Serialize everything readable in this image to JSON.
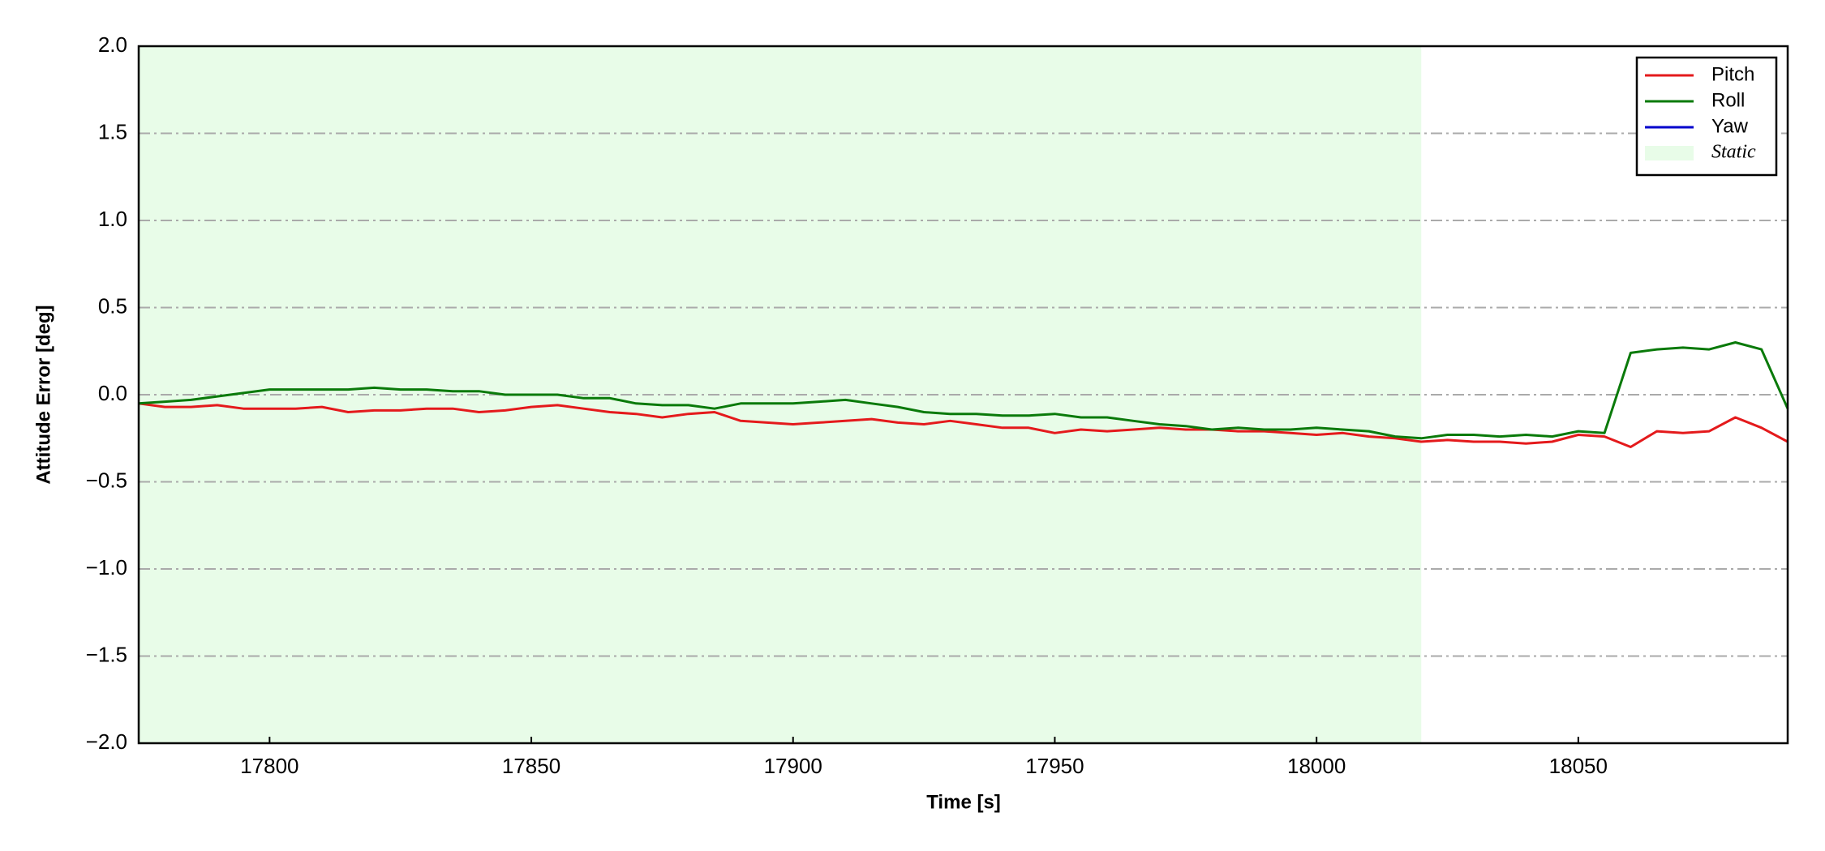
{
  "chart_data": {
    "type": "line",
    "xlabel": "Time [s]",
    "ylabel": "Attitude Error [deg]",
    "x": [
      17775,
      17780,
      17785,
      17790,
      17795,
      17800,
      17805,
      17810,
      17815,
      17820,
      17825,
      17830,
      17835,
      17840,
      17845,
      17850,
      17855,
      17860,
      17865,
      17870,
      17875,
      17880,
      17885,
      17890,
      17895,
      17900,
      17905,
      17910,
      17915,
      17920,
      17925,
      17930,
      17935,
      17940,
      17945,
      17950,
      17955,
      17960,
      17965,
      17970,
      17975,
      17980,
      17985,
      17990,
      17995,
      18000,
      18005,
      18010,
      18015,
      18020,
      18025,
      18030,
      18035,
      18040,
      18045,
      18050,
      18055,
      18060,
      18065,
      18070,
      18075,
      18080,
      18085,
      18090
    ],
    "series": [
      {
        "name": "Pitch",
        "color": "#e41a1c",
        "values": [
          -0.05,
          -0.07,
          -0.07,
          -0.06,
          -0.08,
          -0.08,
          -0.08,
          -0.07,
          -0.1,
          -0.09,
          -0.09,
          -0.08,
          -0.08,
          -0.1,
          -0.09,
          -0.07,
          -0.06,
          -0.08,
          -0.1,
          -0.11,
          -0.13,
          -0.11,
          -0.1,
          -0.15,
          -0.16,
          -0.17,
          -0.16,
          -0.15,
          -0.14,
          -0.16,
          -0.17,
          -0.15,
          -0.17,
          -0.19,
          -0.19,
          -0.22,
          -0.2,
          -0.21,
          -0.2,
          -0.19,
          -0.2,
          -0.2,
          -0.21,
          -0.21,
          -0.22,
          -0.23,
          -0.22,
          -0.24,
          -0.25,
          -0.27,
          -0.26,
          -0.27,
          -0.27,
          -0.28,
          -0.27,
          -0.23,
          -0.24,
          -0.3,
          -0.21,
          -0.22,
          -0.21,
          -0.13,
          -0.19,
          -0.27
        ]
      },
      {
        "name": "Roll",
        "color": "#0a7a0a",
        "values": [
          -0.05,
          -0.04,
          -0.03,
          -0.01,
          0.01,
          0.03,
          0.03,
          0.03,
          0.03,
          0.04,
          0.03,
          0.03,
          0.02,
          0.02,
          0.0,
          0.0,
          0.0,
          -0.02,
          -0.02,
          -0.05,
          -0.06,
          -0.06,
          -0.08,
          -0.05,
          -0.05,
          -0.05,
          -0.04,
          -0.03,
          -0.05,
          -0.07,
          -0.1,
          -0.11,
          -0.11,
          -0.12,
          -0.12,
          -0.11,
          -0.13,
          -0.13,
          -0.15,
          -0.17,
          -0.18,
          -0.2,
          -0.19,
          -0.2,
          -0.2,
          -0.19,
          -0.2,
          -0.21,
          -0.24,
          -0.25,
          -0.23,
          -0.23,
          -0.24,
          -0.23,
          -0.24,
          -0.21,
          -0.22,
          0.24,
          0.26,
          0.27,
          0.26,
          0.3,
          0.26,
          -0.08
        ]
      },
      {
        "name": "Yaw",
        "color": "#0000cc",
        "values": [
          null,
          null,
          null,
          null,
          null,
          null,
          null,
          null,
          null,
          null,
          null,
          null,
          null,
          null,
          null,
          null,
          null,
          null,
          null,
          null,
          null,
          null,
          null,
          null,
          null,
          null,
          null,
          null,
          null,
          null,
          null,
          null,
          null,
          null,
          null,
          null,
          null,
          null,
          null,
          null,
          null,
          null,
          null,
          null,
          null,
          null,
          null,
          null,
          null,
          null,
          null,
          null,
          null,
          null,
          null,
          null,
          null,
          null,
          null,
          null,
          null,
          null,
          null,
          null
        ]
      }
    ],
    "static_region": [
      17775,
      18020
    ],
    "static_label": "Static",
    "static_color": "#e8fce8",
    "xlim": [
      17775,
      18090
    ],
    "xticks": [
      17800,
      17850,
      17900,
      17950,
      18000,
      18050
    ],
    "ylim": [
      -2,
      2
    ],
    "yticks": [
      {
        "value": -2,
        "label": "−2.0"
      },
      {
        "value": -1.5,
        "label": "−1.5"
      },
      {
        "value": -1,
        "label": "−1.0"
      },
      {
        "value": -0.5,
        "label": "−0.5"
      },
      {
        "value": 0,
        "label": "0.0"
      },
      {
        "value": 0.5,
        "label": "0.5"
      },
      {
        "value": 1,
        "label": "1.0"
      },
      {
        "value": 1.5,
        "label": "1.5"
      },
      {
        "value": 2,
        "label": "2.0"
      }
    ],
    "grid": true,
    "legend": "upper right"
  }
}
